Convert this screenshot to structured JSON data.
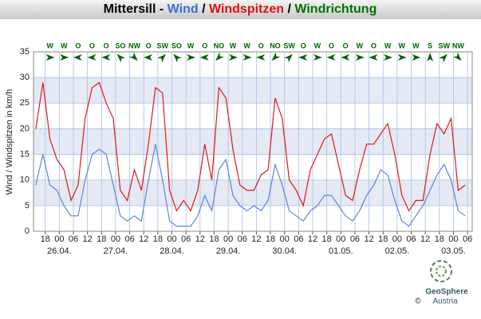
{
  "chart_data": {
    "type": "line",
    "title_parts": [
      {
        "text": "Mittersill - ",
        "color": "#000000"
      },
      {
        "text": "Wind",
        "color": "#3a6fd8"
      },
      {
        "text": " / ",
        "color": "#000000"
      },
      {
        "text": "Windspitzen",
        "color": "#e01010"
      },
      {
        "text": " / ",
        "color": "#000000"
      },
      {
        "text": "Windrichtung",
        "color": "#007000"
      }
    ],
    "y_label": "Wind / Windspitzen in km/h",
    "xlim": [
      13,
      200
    ],
    "ylim": [
      0,
      35
    ],
    "yticks": [
      0,
      5,
      10,
      15,
      20,
      25,
      30,
      35
    ],
    "xticks": [
      {
        "value": 18,
        "label": "18"
      },
      {
        "value": 24,
        "label": "00"
      },
      {
        "value": 30,
        "label": "06"
      },
      {
        "value": 36,
        "label": "12"
      },
      {
        "value": 42,
        "label": "18"
      },
      {
        "value": 48,
        "label": "00"
      },
      {
        "value": 54,
        "label": "06"
      },
      {
        "value": 60,
        "label": "12"
      },
      {
        "value": 66,
        "label": "18"
      },
      {
        "value": 72,
        "label": "00"
      },
      {
        "value": 78,
        "label": "06"
      },
      {
        "value": 84,
        "label": "12"
      },
      {
        "value": 90,
        "label": "18"
      },
      {
        "value": 96,
        "label": "00"
      },
      {
        "value": 102,
        "label": "06"
      },
      {
        "value": 108,
        "label": "12"
      },
      {
        "value": 114,
        "label": "18"
      },
      {
        "value": 120,
        "label": "00"
      },
      {
        "value": 126,
        "label": "06"
      },
      {
        "value": 132,
        "label": "12"
      },
      {
        "value": 138,
        "label": "18"
      },
      {
        "value": 144,
        "label": "00"
      },
      {
        "value": 150,
        "label": "06"
      },
      {
        "value": 156,
        "label": "12"
      },
      {
        "value": 162,
        "label": "18"
      },
      {
        "value": 168,
        "label": "00"
      },
      {
        "value": 174,
        "label": "06"
      },
      {
        "value": 180,
        "label": "12"
      },
      {
        "value": 186,
        "label": "18"
      },
      {
        "value": 192,
        "label": "00"
      },
      {
        "value": 198,
        "label": "06"
      }
    ],
    "date_labels": [
      {
        "value": 24,
        "label": "26.04."
      },
      {
        "value": 48,
        "label": "27.04."
      },
      {
        "value": 72,
        "label": "28.04."
      },
      {
        "value": 96,
        "label": "29.04."
      },
      {
        "value": 120,
        "label": "30.04."
      },
      {
        "value": 144,
        "label": "01.05."
      },
      {
        "value": 168,
        "label": "02.05."
      },
      {
        "value": 192,
        "label": "03.05."
      }
    ],
    "grid": true,
    "x": [
      14,
      17,
      20,
      23,
      26,
      29,
      32,
      35,
      38,
      41,
      44,
      47,
      50,
      53,
      56,
      59,
      62,
      65,
      68,
      71,
      74,
      77,
      80,
      83,
      86,
      89,
      92,
      95,
      98,
      101,
      104,
      107,
      110,
      113,
      116,
      119,
      122,
      125,
      128,
      131,
      134,
      137,
      140,
      143,
      146,
      149,
      152,
      155,
      158,
      161,
      164,
      167,
      170,
      173,
      176,
      179,
      182,
      185,
      188,
      191,
      194,
      197
    ],
    "series": [
      {
        "name": "Wind",
        "color": "#5b86dc",
        "values": [
          9,
          15,
          9,
          8,
          5,
          3,
          3,
          10,
          15,
          16,
          15,
          9,
          3,
          2,
          3,
          2,
          10,
          17,
          10,
          2,
          1,
          1,
          1,
          3,
          7,
          4,
          12,
          14,
          7,
          5,
          4,
          5,
          4,
          6,
          13,
          9,
          4,
          3,
          2,
          4,
          5,
          7,
          7,
          5,
          3,
          2,
          4,
          7,
          9,
          12,
          11,
          6,
          2,
          1,
          3,
          5,
          8,
          11,
          13,
          10,
          4,
          3
        ]
      },
      {
        "name": "Windspitzen",
        "color": "#e01818",
        "values": [
          20,
          29,
          18,
          14,
          12,
          6,
          9,
          22,
          28,
          29,
          25,
          22,
          8,
          6,
          12,
          8,
          17,
          28,
          27,
          8,
          4,
          6,
          4,
          8,
          17,
          10,
          28,
          26,
          16,
          9,
          8,
          8,
          11,
          12,
          26,
          22,
          10,
          8,
          5,
          12,
          15,
          18,
          19,
          13,
          7,
          6,
          12,
          17,
          17,
          19,
          21,
          15,
          7,
          4,
          6,
          6,
          15,
          21,
          19,
          22,
          8,
          9
        ]
      }
    ],
    "directions": {
      "name": "Windrichtung",
      "color": "#006400",
      "x": [
        20,
        26,
        32,
        38,
        44,
        50,
        56,
        62,
        68,
        74,
        80,
        86,
        92,
        98,
        104,
        110,
        116,
        122,
        128,
        134,
        140,
        146,
        152,
        158,
        164,
        170,
        176,
        182,
        188,
        194
      ],
      "labels": [
        "W",
        "W",
        "O",
        "O",
        "O",
        "SO",
        "NW",
        "O",
        "SW",
        "SO",
        "W",
        "O",
        "NO",
        "W",
        "W",
        "O",
        "NO",
        "SW",
        "O",
        "W",
        "O",
        "O",
        "W",
        "O",
        "W",
        "W",
        "W",
        "S",
        "SW",
        "NW"
      ]
    },
    "logo": {
      "name": "GeoSphere",
      "sub": "Austria",
      "copyright": "©"
    }
  }
}
